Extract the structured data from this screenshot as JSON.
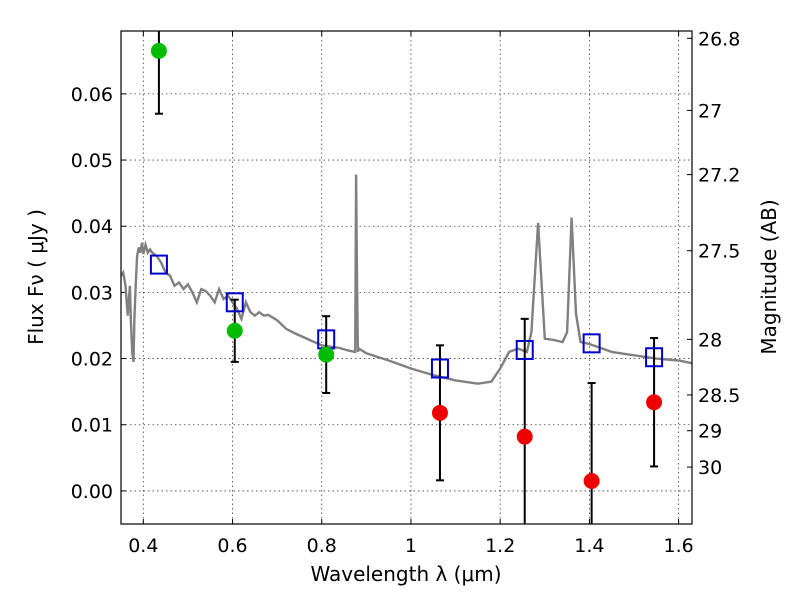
{
  "chart_data": {
    "type": "scatter",
    "xlabel": "Wavelength  λ (μm)",
    "ylabel": "Flux  Fν  ( μJy )",
    "ylabel_right": "Magnitude (AB)",
    "xlim": [
      0.35,
      1.63
    ],
    "ylim": [
      -0.005,
      0.0695
    ],
    "x_ticks": [
      0.4,
      0.6,
      0.8,
      1.0,
      1.2,
      1.4,
      1.6
    ],
    "x_tick_labels": [
      "0.4",
      "0.6",
      "0.8",
      "1",
      "1.2",
      "1.4",
      "1.6"
    ],
    "y_ticks": [
      0.0,
      0.01,
      0.02,
      0.03,
      0.04,
      0.05,
      0.06
    ],
    "y_tick_labels": [
      "0.00",
      "0.01",
      "0.02",
      "0.03",
      "0.04",
      "0.05",
      "0.06"
    ],
    "right_ticks": [
      {
        "label": "26.8",
        "flux": 0.0684
      },
      {
        "label": "27",
        "flux": 0.0575
      },
      {
        "label": "27.2",
        "flux": 0.0478
      },
      {
        "label": "27.5",
        "flux": 0.0363
      },
      {
        "label": "28",
        "flux": 0.0229
      },
      {
        "label": "28.5",
        "flux": 0.0145
      },
      {
        "label": "29",
        "flux": 0.0091
      },
      {
        "label": "30",
        "flux": 0.0036
      }
    ],
    "grid": true,
    "series": [
      {
        "name": "model SED",
        "kind": "line",
        "color": "#808080",
        "x": [
          0.35,
          0.355,
          0.36,
          0.365,
          0.37,
          0.372,
          0.375,
          0.378,
          0.38,
          0.383,
          0.386,
          0.39,
          0.393,
          0.397,
          0.4,
          0.405,
          0.41,
          0.415,
          0.42,
          0.43,
          0.44,
          0.45,
          0.46,
          0.47,
          0.48,
          0.49,
          0.5,
          0.51,
          0.52,
          0.53,
          0.54,
          0.55,
          0.56,
          0.57,
          0.58,
          0.59,
          0.6,
          0.61,
          0.62,
          0.63,
          0.64,
          0.65,
          0.66,
          0.67,
          0.68,
          0.7,
          0.72,
          0.74,
          0.76,
          0.78,
          0.8,
          0.82,
          0.84,
          0.86,
          0.875,
          0.877,
          0.879,
          0.881,
          0.883,
          0.9,
          0.95,
          1.0,
          1.05,
          1.1,
          1.15,
          1.18,
          1.2,
          1.22,
          1.24,
          1.26,
          1.27,
          1.285,
          1.3,
          1.32,
          1.34,
          1.35,
          1.36,
          1.37,
          1.38,
          1.4,
          1.45,
          1.5,
          1.55,
          1.6,
          1.63
        ],
        "y": [
          0.0325,
          0.033,
          0.031,
          0.0265,
          0.031,
          0.026,
          0.021,
          0.0195,
          0.026,
          0.031,
          0.0355,
          0.0368,
          0.036,
          0.0375,
          0.0358,
          0.0372,
          0.036,
          0.0365,
          0.036,
          0.0355,
          0.0345,
          0.033,
          0.0325,
          0.031,
          0.0315,
          0.0305,
          0.0312,
          0.03,
          0.0285,
          0.0305,
          0.0302,
          0.0295,
          0.0285,
          0.0305,
          0.029,
          0.0295,
          0.0285,
          0.0275,
          0.026,
          0.0285,
          0.027,
          0.0265,
          0.027,
          0.0265,
          0.0266,
          0.0258,
          0.0245,
          0.0238,
          0.0232,
          0.0226,
          0.022,
          0.0218,
          0.0216,
          0.0212,
          0.021,
          0.0478,
          0.032,
          0.021,
          0.0215,
          0.0208,
          0.0197,
          0.0185,
          0.0175,
          0.0167,
          0.0162,
          0.0165,
          0.0185,
          0.021,
          0.0215,
          0.021,
          0.024,
          0.0405,
          0.023,
          0.0228,
          0.0225,
          0.024,
          0.0413,
          0.0268,
          0.0225,
          0.0222,
          0.021,
          0.0205,
          0.02,
          0.0197,
          0.0193
        ]
      },
      {
        "name": "model photometry",
        "kind": "square",
        "color": "#0000cc",
        "x": [
          0.435,
          0.605,
          0.81,
          1.065,
          1.255,
          1.405,
          1.545
        ],
        "y": [
          0.0342,
          0.0285,
          0.0229,
          0.0185,
          0.0213,
          0.0223,
          0.0202
        ]
      },
      {
        "name": "detections",
        "kind": "circle",
        "color": "#00bb00",
        "x": [
          0.435,
          0.605,
          0.81
        ],
        "y": [
          0.0665,
          0.0242,
          0.0206
        ],
        "yerr": [
          0.0095,
          0.0047,
          0.0058
        ]
      },
      {
        "name": "non-detections",
        "kind": "circle",
        "color": "#ee0000",
        "x": [
          1.065,
          1.255,
          1.405,
          1.545
        ],
        "y": [
          0.0118,
          0.0082,
          0.0015,
          0.0134
        ],
        "yerr": [
          0.0102,
          0.0178,
          0.0148,
          0.0097
        ]
      }
    ]
  }
}
